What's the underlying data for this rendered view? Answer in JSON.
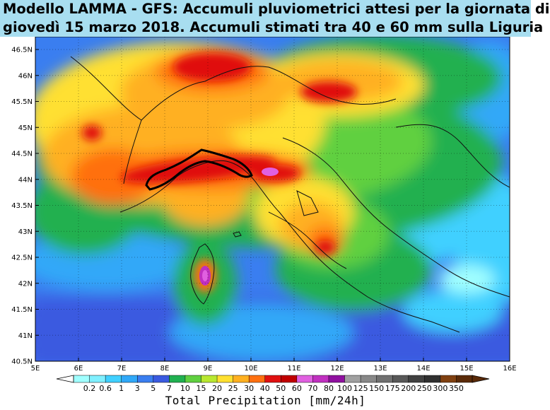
{
  "title": {
    "line1": "Modello LAMMA - GFS: Accumuli pluviometrici attesi per la giornata di",
    "line2": "giovedì 15 marzo 2018. Accumuli stimati tra 40 e 60 mm sulla Liguria"
  },
  "map": {
    "lat_labels": [
      "46.5N",
      "46N",
      "45.5N",
      "45N",
      "44.5N",
      "44N",
      "43.5N",
      "43N",
      "42.5N",
      "42N",
      "41.5N",
      "41N",
      "40.5N"
    ],
    "lon_labels": [
      "5E",
      "6E",
      "7E",
      "8E",
      "9E",
      "10E",
      "11E",
      "12E",
      "13E",
      "14E",
      "15E",
      "16E"
    ],
    "lat_range": [
      40.5,
      46.5
    ],
    "lon_range": [
      5,
      16
    ]
  },
  "colorbar": {
    "title": "Total Precipitation [mm/24h]",
    "labels": [
      "0.2",
      "0.6",
      "1",
      "3",
      "5",
      "7",
      "10",
      "15",
      "20",
      "25",
      "30",
      "40",
      "50",
      "60",
      "70",
      "80",
      "100",
      "125",
      "150",
      "175",
      "200",
      "250",
      "300",
      "350"
    ],
    "colors": [
      "#a0ffff",
      "#80f0ff",
      "#40d0ff",
      "#30a8f8",
      "#3a7ef0",
      "#3a5ae0",
      "#20b050",
      "#60d040",
      "#b8e830",
      "#ffe030",
      "#ffb020",
      "#ff7010",
      "#e01010",
      "#c00000",
      "#e060e0",
      "#c030c0",
      "#9010a0",
      "#a0a0a0",
      "#888888",
      "#707070",
      "#585858",
      "#404040",
      "#303030",
      "#804010",
      "#5a2a08"
    ]
  }
}
